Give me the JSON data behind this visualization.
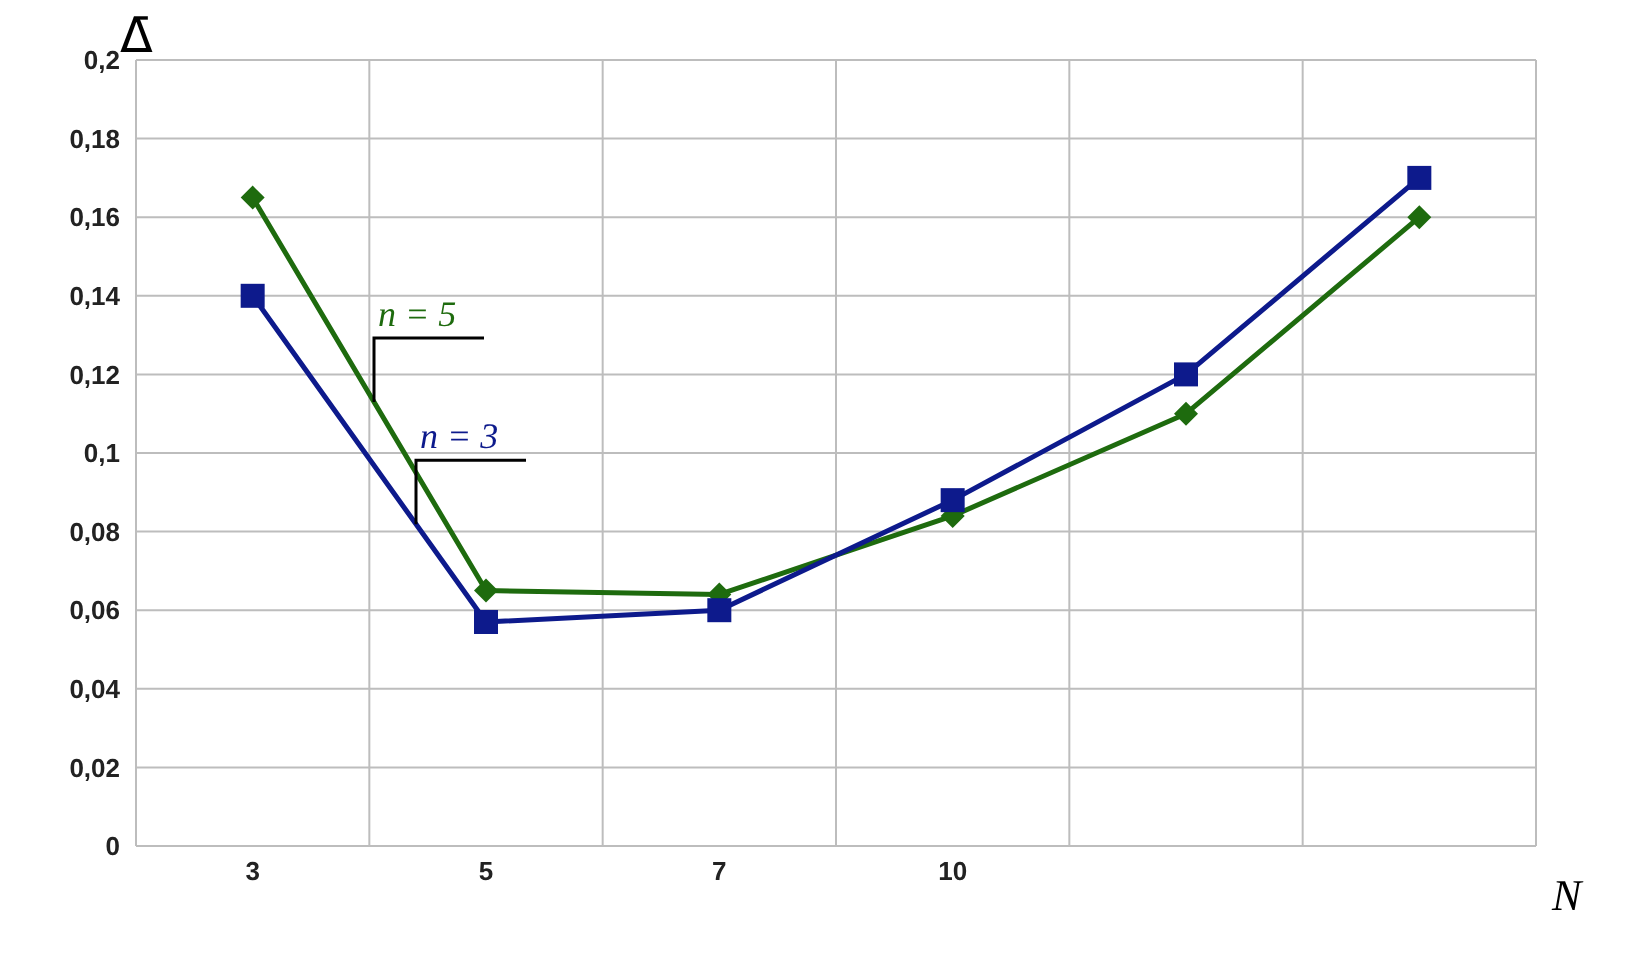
{
  "chart_data": {
    "type": "line",
    "xlabel": "N",
    "ylabel": "Δ̄",
    "categories": [
      "3",
      "5",
      "7",
      "10",
      null,
      null
    ],
    "series": [
      {
        "name": "n = 5",
        "color": "#1e6b0e",
        "marker": "diamond",
        "values": [
          0.165,
          0.065,
          0.064,
          0.084,
          0.11,
          0.16
        ]
      },
      {
        "name": "n = 3",
        "color": "#0d1a8c",
        "marker": "square",
        "values": [
          0.14,
          0.057,
          0.06,
          0.088,
          0.12,
          0.17
        ]
      }
    ],
    "ylim": [
      0,
      0.2
    ],
    "yticks": [
      0,
      {
        "value": 0.02,
        "label": "0,02"
      },
      {
        "value": 0.04,
        "label": "0,04"
      },
      {
        "value": 0.06,
        "label": "0,06"
      },
      {
        "value": 0.08,
        "label": "0,08"
      },
      {
        "value": 0.1,
        "label": "0,1"
      },
      {
        "value": 0.12,
        "label": "0,12"
      },
      {
        "value": 0.14,
        "label": "0,14"
      },
      {
        "value": 0.16,
        "label": "0,16"
      },
      {
        "value": 0.18,
        "label": "0,18"
      },
      {
        "value": 0.2,
        "label": "0,2"
      }
    ],
    "grid": true,
    "line_style": "solid"
  }
}
